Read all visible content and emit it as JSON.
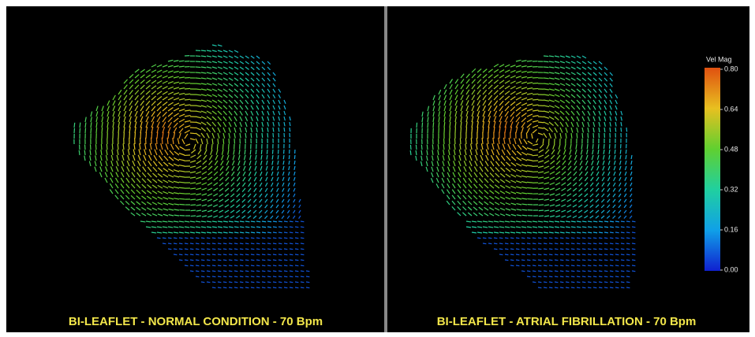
{
  "panels": [
    {
      "caption": "BI-LEAFLET - NORMAL CONDITION - 70 Bpm"
    },
    {
      "caption": "BI-LEAFLET - ATRIAL FIBRILLATION - 70 Bpm"
    }
  ],
  "colorbar": {
    "title": "Vel Mag",
    "ticks": [
      {
        "value": 0,
        "label": "0.00"
      },
      {
        "value": 0.16,
        "label": "0.16"
      },
      {
        "value": 0.32,
        "label": "0.32"
      },
      {
        "value": 0.48,
        "label": "0.48"
      },
      {
        "value": 0.64,
        "label": "0.64"
      },
      {
        "value": 0.8,
        "label": "0.80"
      }
    ]
  }
}
